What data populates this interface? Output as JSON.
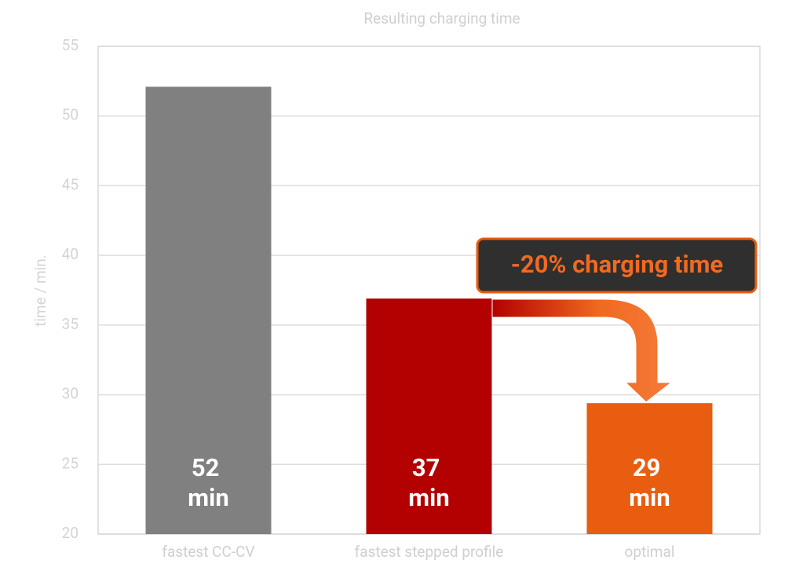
{
  "chart_data": {
    "type": "bar",
    "title": "Resulting charging time",
    "y_label": "time / min.",
    "categories": [
      "fastest CC-CV",
      "fastest stepped profile",
      "optimal"
    ],
    "values": [
      52.1,
      36.9,
      29.4
    ],
    "value_labels": [
      "52 min",
      "37 min",
      "29 min"
    ],
    "colors": [
      "#808080",
      "#b30000",
      "#e85d0f"
    ],
    "ylim": [
      20,
      55
    ],
    "yticks": [
      20,
      25,
      30,
      35,
      40,
      45,
      50,
      55
    ],
    "grid": true,
    "annotation": "-20% charging time"
  }
}
